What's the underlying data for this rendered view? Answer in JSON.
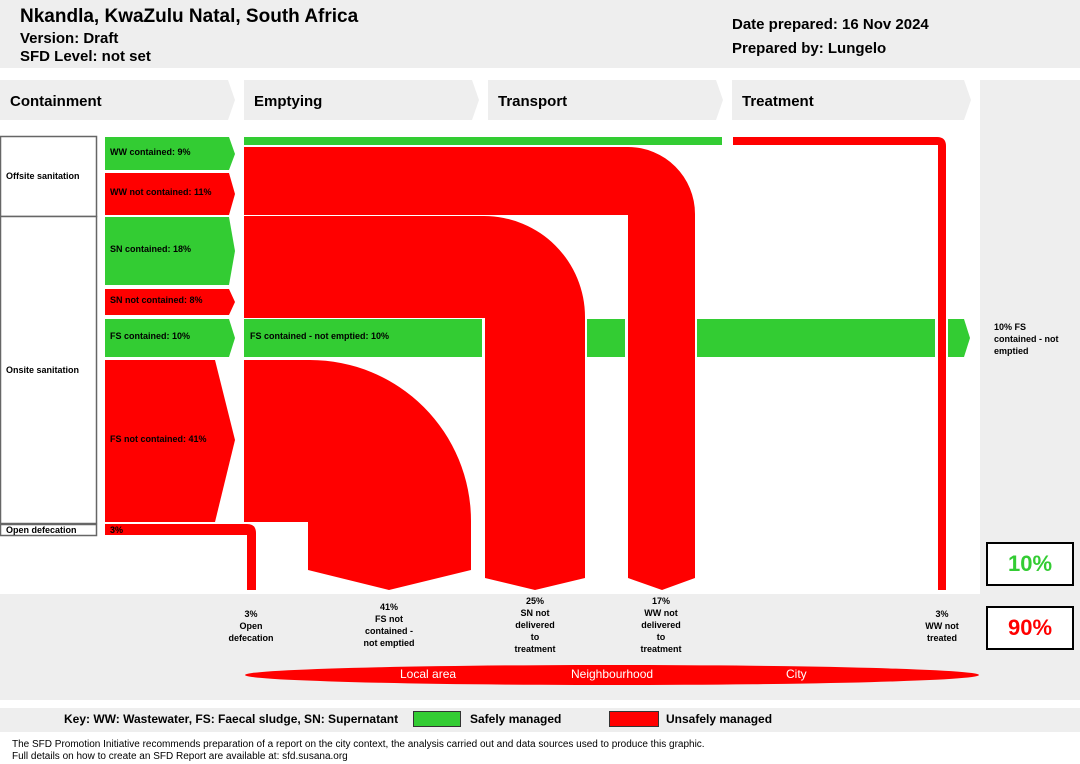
{
  "header": {
    "location": "Nkandla, KwaZulu Natal, South Africa",
    "version": "Version: Draft",
    "sfd_level": "SFD Level: not set",
    "date_prepared": "Date prepared: 16 Nov 2024",
    "prepared_by": "Prepared by: Lungelo"
  },
  "stages": [
    "Containment",
    "Emptying",
    "Transport",
    "Treatment"
  ],
  "categories": {
    "offsite": "Offsite sanitation",
    "onsite": "Onsite sanitation",
    "open": "Open defecation"
  },
  "flows": {
    "ww_contained": "WW contained: 9%",
    "ww_not_contained": "WW not contained: 11%",
    "sn_contained": "SN contained: 18%",
    "sn_not_contained": "SN not contained: 8%",
    "fs_contained": "FS contained: 10%",
    "fs_contained_not_emptied": "FS contained - not emptied: 10%",
    "fs_not_contained": "FS not contained: 41%",
    "open_defecation": "3%"
  },
  "right_note": [
    "10% FS",
    "contained - not",
    "emptied"
  ],
  "outcomes": [
    {
      "lines": [
        "3%",
        "Open",
        "defecation"
      ]
    },
    {
      "lines": [
        "41%",
        "FS not",
        "contained -",
        "not emptied"
      ]
    },
    {
      "lines": [
        "25%",
        "SN not",
        "delivered",
        "to",
        "treatment"
      ]
    },
    {
      "lines": [
        "17%",
        "WW not",
        "delivered",
        "to",
        "treatment"
      ]
    },
    {
      "lines": [
        "3%",
        "WW not",
        "treated"
      ]
    }
  ],
  "totals": {
    "safe": "10%",
    "unsafe": "90%",
    "safe_color": "#33cc33",
    "unsafe_color": "#ff0000"
  },
  "areas": [
    "Local area",
    "Neighbourhood",
    "City"
  ],
  "key": {
    "text": "Key: WW: Wastewater, FS: Faecal sludge, SN: Supernatant",
    "safe": "Safely managed",
    "unsafe": "Unsafely managed"
  },
  "footer": {
    "line1": "The SFD Promotion Initiative recommends preparation of a report on the city context, the analysis carried out and data sources used to produce this graphic.",
    "line2": "Full details on how to create an SFD Report are available at: sfd.susana.org"
  }
}
